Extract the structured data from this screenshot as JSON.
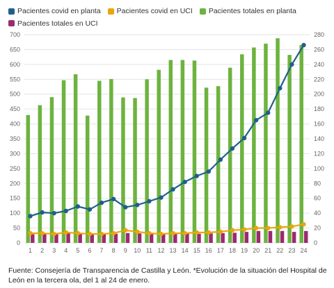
{
  "chart_data": {
    "type": "bar+line",
    "categories": [
      "1",
      "2",
      "3",
      "4",
      "5",
      "6",
      "7",
      "8",
      "9",
      "10",
      "11",
      "12",
      "13",
      "14",
      "15",
      "16",
      "17",
      "18",
      "19",
      "20",
      "21",
      "22",
      "23",
      "24"
    ],
    "y_left": {
      "range": [
        0,
        700
      ],
      "ticks": [
        "0",
        "50",
        "100",
        "150",
        "200",
        "250",
        "300",
        "350",
        "400",
        "450",
        "500",
        "550",
        "600",
        "650",
        "700"
      ]
    },
    "y_right": {
      "range": [
        0,
        280
      ],
      "ticks": [
        "0",
        "20",
        "40",
        "60",
        "80",
        "100",
        "120",
        "140",
        "160",
        "180",
        "200",
        "220",
        "240",
        "260",
        "280"
      ]
    },
    "grid": true,
    "legend_position": "top",
    "series": [
      {
        "name": "Pacientes covid en planta",
        "type": "line",
        "axis": "right",
        "color": "#1f5f8b",
        "values": [
          36,
          41,
          40,
          43,
          49,
          45,
          54,
          59,
          48,
          51,
          56,
          61,
          72,
          82,
          90,
          96,
          112,
          127,
          141,
          165,
          175,
          208,
          240,
          266
        ]
      },
      {
        "name": "Pacientes covid en UCI",
        "type": "line",
        "axis": "right",
        "color": "#e8a70c",
        "values": [
          13,
          13,
          12,
          14,
          13,
          12,
          12,
          13,
          17,
          15,
          13,
          12,
          13,
          13,
          14,
          14,
          15,
          17,
          18,
          20,
          20,
          21,
          22,
          25
        ]
      },
      {
        "name": "Pacientes totales en planta",
        "type": "bar",
        "axis": "left",
        "color": "#6db33f",
        "values": [
          430,
          463,
          490,
          547,
          567,
          428,
          545,
          551,
          489,
          487,
          550,
          582,
          615,
          615,
          613,
          522,
          527,
          589,
          634,
          657,
          670,
          688,
          632,
          665
        ]
      },
      {
        "name": "Pacientes totales en UCI",
        "type": "bar",
        "axis": "left",
        "color": "#9c2a6e",
        "values": [
          29,
          30,
          31,
          33,
          30,
          31,
          30,
          31,
          33,
          32,
          31,
          31,
          30,
          31,
          31,
          32,
          33,
          34,
          37,
          40,
          40,
          40,
          37,
          40
        ]
      }
    ]
  },
  "source_text": "Fuente: Consejería de Transparencia de Castilla y León. *Evolución de la situación del Hospital de León en la tercera ola, del 1 al 24 de enero."
}
